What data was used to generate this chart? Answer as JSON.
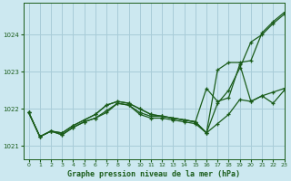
{
  "title": "Graphe pression niveau de la mer (hPa)",
  "background_color": "#cce8f0",
  "grid_color": "#a8ccd8",
  "line_color": "#1a5c1a",
  "xlim": [
    -0.5,
    23
  ],
  "ylim": [
    1020.65,
    1024.85
  ],
  "yticks": [
    1021,
    1022,
    1023,
    1024
  ],
  "xticks": [
    0,
    1,
    2,
    3,
    4,
    5,
    6,
    7,
    8,
    9,
    10,
    11,
    12,
    13,
    14,
    15,
    16,
    17,
    18,
    19,
    20,
    21,
    22,
    23
  ],
  "series": [
    [
      1021.9,
      1021.25,
      1021.4,
      1021.3,
      1021.5,
      1021.65,
      1021.75,
      1021.9,
      1022.15,
      1022.1,
      1021.85,
      1021.75,
      1021.75,
      1021.7,
      1021.65,
      1021.6,
      1021.35,
      1021.6,
      1021.85,
      1022.25,
      1022.2,
      1022.35,
      1022.45,
      1022.55
    ],
    [
      1021.9,
      1021.25,
      1021.4,
      1021.3,
      1021.5,
      1021.65,
      1021.75,
      1021.95,
      1022.15,
      1022.1,
      1021.9,
      1021.8,
      1021.8,
      1021.75,
      1021.7,
      1021.65,
      1022.55,
      1022.2,
      1022.3,
      1023.2,
      1022.2,
      1022.35,
      1022.15,
      1022.5
    ],
    [
      1021.9,
      1021.25,
      1021.4,
      1021.35,
      1021.55,
      1021.7,
      1021.85,
      1022.1,
      1022.2,
      1022.15,
      1022.0,
      1021.85,
      1021.8,
      1021.75,
      1021.7,
      1021.65,
      1021.35,
      1022.15,
      1022.5,
      1023.1,
      1023.8,
      1024.0,
      1024.3,
      1024.55
    ],
    [
      1021.9,
      1021.25,
      1021.4,
      1021.35,
      1021.55,
      1021.7,
      1021.85,
      1022.1,
      1022.2,
      1022.15,
      1022.0,
      1021.85,
      1021.8,
      1021.75,
      1021.7,
      1021.65,
      1021.35,
      1023.05,
      1023.25,
      1023.25,
      1023.3,
      1024.05,
      1024.35,
      1024.6
    ]
  ]
}
